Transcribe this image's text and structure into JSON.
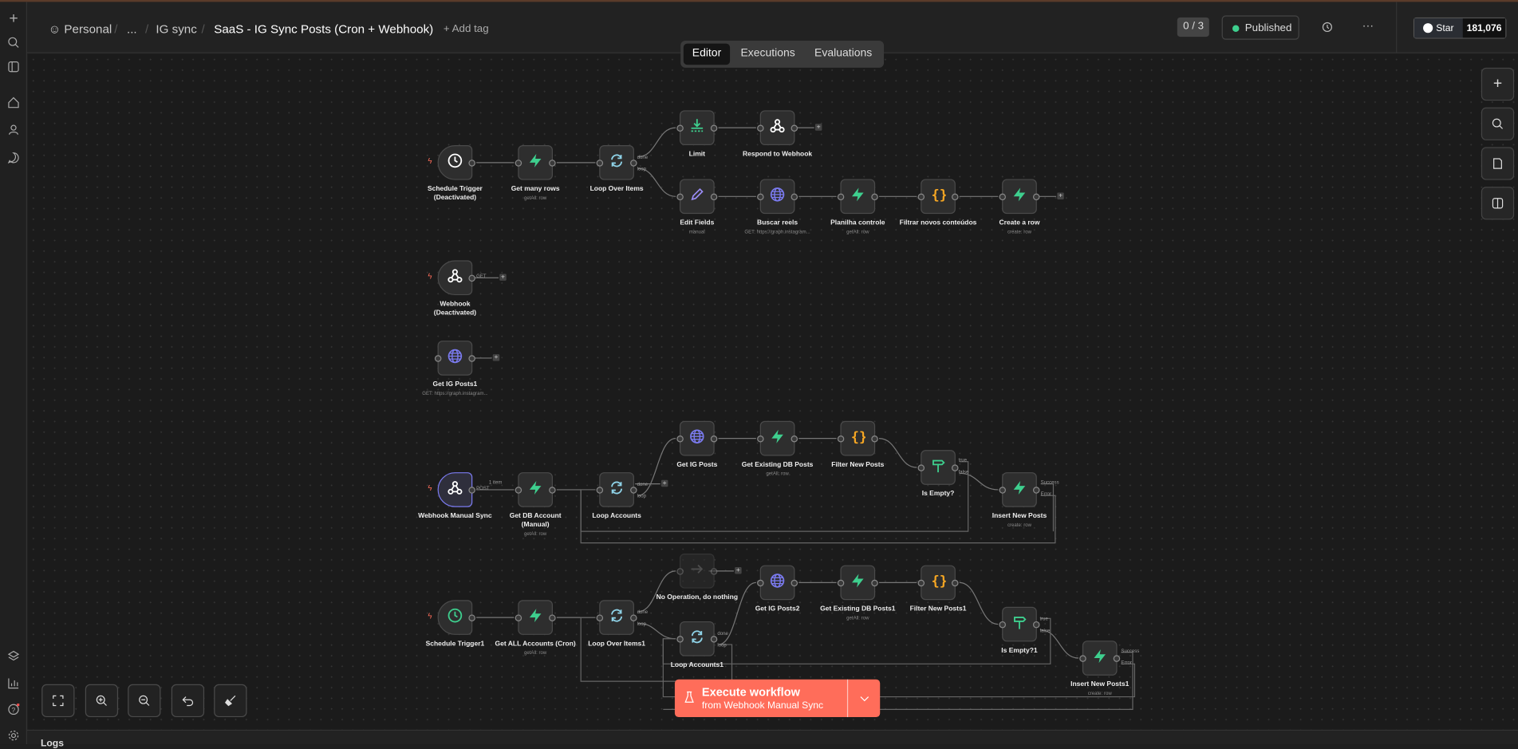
{
  "header": {
    "breadcrumb": {
      "project": "Personal",
      "ellipsis": "...",
      "folder": "IG sync",
      "workflow": "SaaS - IG Sync Posts (Cron + Webhook)"
    },
    "add_tag": "+ Add tag",
    "counter": "0 / 3",
    "published": "Published",
    "github_star": "Star",
    "star_count": "181,076"
  },
  "tabs": [
    "Editor",
    "Executions",
    "Evaluations"
  ],
  "nodes": [
    {
      "id": "n0",
      "label": "Schedule Trigger (Deactivated)",
      "icon": "clock-icon",
      "sub": "",
      "trigger": true,
      "disabled": true
    },
    {
      "id": "n1",
      "label": "Get many rows",
      "icon": "supabase-icon",
      "sub": "getAll: row"
    },
    {
      "id": "n2",
      "label": "Loop Over Items",
      "icon": "loop-icon",
      "sub": ""
    },
    {
      "id": "n3",
      "label": "Limit",
      "icon": "limit-icon",
      "sub": ""
    },
    {
      "id": "n4",
      "label": "Respond to Webhook",
      "icon": "webhook-icon",
      "sub": ""
    },
    {
      "id": "n5",
      "label": "Edit Fields",
      "icon": "pencil-icon",
      "sub": "manual"
    },
    {
      "id": "n6",
      "label": "Buscar reels",
      "icon": "globe-icon",
      "sub": "GET: https://graph.instagram..."
    },
    {
      "id": "n7",
      "label": "Planilha controle",
      "icon": "supabase-icon",
      "sub": "getAll: row"
    },
    {
      "id": "n8",
      "label": "Filtrar novos conteúdos",
      "icon": "code-icon",
      "sub": ""
    },
    {
      "id": "n9",
      "label": "Create a row",
      "icon": "supabase-icon",
      "sub": "create: row"
    },
    {
      "id": "n10",
      "label": "Webhook (Deactivated)",
      "icon": "webhook-icon",
      "sub": "",
      "trigger": true,
      "disabled": true
    },
    {
      "id": "n11",
      "label": "Get IG Posts1",
      "icon": "globe-icon",
      "sub": "GET: https://graph.instagram..."
    },
    {
      "id": "n12",
      "label": "Webhook Manual Sync",
      "icon": "webhook-icon",
      "sub": "",
      "trigger": true
    },
    {
      "id": "n13",
      "label": "Get DB Account (Manual)",
      "icon": "supabase-icon",
      "sub": "getAll: row"
    },
    {
      "id": "n14",
      "label": "Loop Accounts",
      "icon": "loop-icon",
      "sub": ""
    },
    {
      "id": "n15",
      "label": "Get IG Posts",
      "icon": "globe-icon",
      "sub": ""
    },
    {
      "id": "n16",
      "label": "Get Existing DB Posts",
      "icon": "supabase-icon",
      "sub": "getAll: row"
    },
    {
      "id": "n17",
      "label": "Filter New Posts",
      "icon": "code-icon",
      "sub": ""
    },
    {
      "id": "n18",
      "label": "Is Empty?",
      "icon": "if-icon",
      "sub": ""
    },
    {
      "id": "n19",
      "label": "Insert New Posts",
      "icon": "supabase-icon",
      "sub": "create: row"
    },
    {
      "id": "n20",
      "label": "Schedule Trigger1",
      "icon": "clock-icon",
      "sub": "",
      "trigger": true
    },
    {
      "id": "n21",
      "label": "Get ALL Accounts (Cron)",
      "icon": "supabase-icon",
      "sub": "getAll: row"
    },
    {
      "id": "n22",
      "label": "Loop Over Items1",
      "icon": "loop-icon",
      "sub": ""
    },
    {
      "id": "n23",
      "label": "No Operation, do nothing",
      "icon": "arrow-right-icon",
      "sub": ""
    },
    {
      "id": "n24",
      "label": "Loop Accounts1",
      "icon": "loop-icon",
      "sub": ""
    },
    {
      "id": "n25",
      "label": "Get IG Posts2",
      "icon": "globe-icon",
      "sub": ""
    },
    {
      "id": "n26",
      "label": "Get Existing DB Posts1",
      "icon": "supabase-icon",
      "sub": "getAll: row"
    },
    {
      "id": "n27",
      "label": "Filter New Posts1",
      "icon": "code-icon",
      "sub": ""
    },
    {
      "id": "n28",
      "label": "Is Empty?1",
      "icon": "if-icon",
      "sub": ""
    },
    {
      "id": "n29",
      "label": "Insert New Posts1",
      "icon": "supabase-icon",
      "sub": "create: row"
    }
  ],
  "ports": {
    "done": "done",
    "loop": "loop",
    "true": "true",
    "false": "false",
    "success": "Success",
    "error": "Error",
    "get": "GET",
    "post": "POST",
    "items": "1 item"
  },
  "execute": {
    "title": "Execute workflow",
    "subtitle": "from Webhook Manual Sync"
  },
  "logs": "Logs",
  "colors": {
    "accent": "#ff6d5a",
    "supabase": "#3ecf8e",
    "globe": "#7b7bf0",
    "code": "#f5a623",
    "loop": "#8fd3e8",
    "published_dot": "#3ecf8e"
  }
}
